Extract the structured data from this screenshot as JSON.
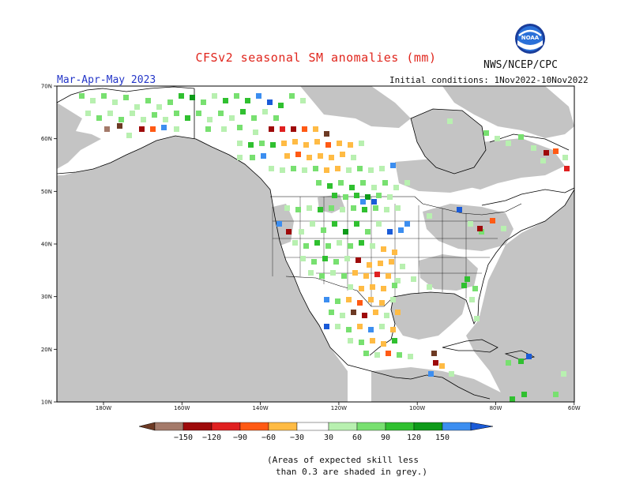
{
  "title": "CFSv2 seasonal SM anomalies (mm)",
  "period": "Mar-Apr-May 2023",
  "initial_conditions": "Initial conditions: 1Nov2022-10Nov2022",
  "org": "NWS/NCEP/CPC",
  "logo_text": "NOAA",
  "lat_labels": [
    "70N",
    "60N",
    "50N",
    "40N",
    "30N",
    "20N",
    "10N"
  ],
  "lon_labels": [
    "180W",
    "160W",
    "140W",
    "120W",
    "100W",
    "80W",
    "60W"
  ],
  "legend": {
    "ticks": [
      "−150",
      "−120",
      "−90",
      "−60",
      "−30",
      "30",
      "60",
      "90",
      "120",
      "150"
    ],
    "colors": [
      "#6d3a24",
      "#a47a6a",
      "#9e0a0a",
      "#e02020",
      "#ff5a14",
      "#ffbb44",
      "#ffffff",
      "#b8f0b0",
      "#78e070",
      "#30c030",
      "#0e9a1a",
      "#3c8ef0",
      "#1a5bd8"
    ]
  },
  "note_line1": "(Areas of expected skill less",
  "note_line2": "than 0.3 are shaded in grey.)",
  "colors": {
    "grey_mask": "#c4c4c4",
    "title": "#e0251c",
    "period": "#2436c8"
  }
}
